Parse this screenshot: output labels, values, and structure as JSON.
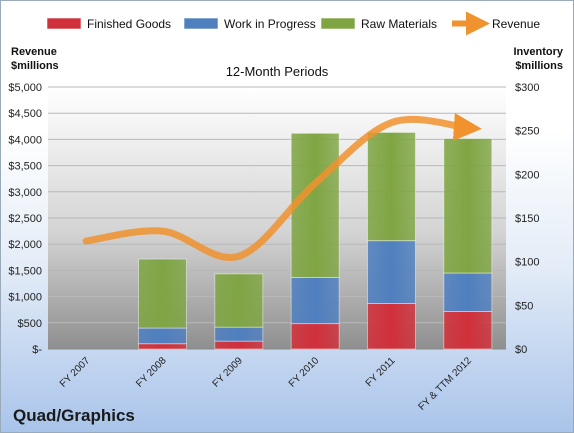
{
  "chart_data": {
    "type": "bar",
    "stacked": true,
    "title": "12-Month Periods",
    "company": "Quad/Graphics",
    "categories": [
      "FY 2007",
      "FY 2008",
      "FY 2009",
      "FY 2010",
      "FY 2011",
      "FY & TTM 2012"
    ],
    "left_axis": {
      "label_line1": "Revenue",
      "label_line2": "$millions",
      "ylim": [
        0,
        5000
      ],
      "ticks": [
        0,
        500,
        1000,
        1500,
        2000,
        2500,
        3000,
        3500,
        4000,
        4500,
        5000
      ],
      "tick_labels": [
        "$-",
        "$500",
        "$1,000",
        "$1,500",
        "$2,000",
        "$2,500",
        "$3,000",
        "$3,500",
        "$4,000",
        "$4,500",
        "$5,000"
      ]
    },
    "right_axis": {
      "label_line1": "Inventory",
      "label_line2": "$millions",
      "ylim": [
        0,
        300
      ],
      "ticks": [
        0,
        50,
        100,
        150,
        200,
        250,
        300
      ],
      "tick_labels": [
        "$0",
        "$50",
        "$100",
        "$150",
        "$200",
        "$250",
        "$300"
      ]
    },
    "series": [
      {
        "name": "Finished Goods",
        "color": "#d0303a",
        "axis": "right",
        "values": [
          0,
          6,
          9,
          29,
          52,
          43
        ]
      },
      {
        "name": "Work in Progress",
        "color": "#4f7fbf",
        "axis": "right",
        "values": [
          0,
          18,
          16,
          53,
          72,
          44
        ]
      },
      {
        "name": "Raw Materials",
        "color": "#7fa543",
        "axis": "right",
        "values": [
          0,
          79,
          61,
          165,
          124,
          154
        ]
      }
    ],
    "line_series": {
      "name": "Revenue",
      "color": "#f0922e",
      "axis": "left",
      "values": [
        2060,
        2250,
        1770,
        3160,
        4320,
        4220
      ]
    },
    "legend_position": "top",
    "grid": true
  }
}
